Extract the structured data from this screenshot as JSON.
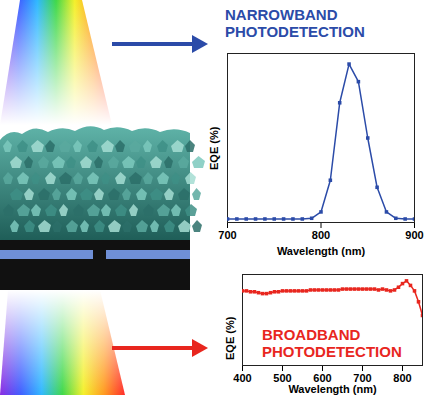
{
  "chart_data": [
    {
      "type": "line",
      "title": "NARROWBAND PHOTODETECTION",
      "x_label": "Wavelength (nm)",
      "y_label": "EQE (%)",
      "x": [
        700,
        710,
        720,
        730,
        740,
        750,
        760,
        770,
        780,
        790,
        800,
        810,
        820,
        830,
        840,
        850,
        860,
        870,
        880,
        890,
        900
      ],
      "values": [
        0.5,
        0.5,
        0.5,
        0.5,
        0.5,
        0.5,
        0.5,
        0.5,
        0.5,
        0.6,
        1.5,
        6,
        17,
        22.5,
        20,
        12,
        5,
        1.5,
        0.6,
        0.5,
        0.5
      ],
      "color": "#2b4ba8",
      "marker": "square",
      "line_style": "solid",
      "xlim": [
        700,
        900
      ],
      "xticks": [
        700,
        800,
        900
      ],
      "ylim": [
        0,
        24
      ],
      "tick_labels": "x"
    },
    {
      "type": "line",
      "title": "BROADBAND PHOTODETECTION",
      "x_label": "Wavelength (nm)",
      "y_label": "EQE (%)",
      "x": [
        400,
        410,
        420,
        430,
        440,
        450,
        460,
        470,
        480,
        490,
        500,
        510,
        520,
        530,
        540,
        550,
        560,
        570,
        580,
        590,
        600,
        610,
        620,
        630,
        640,
        650,
        660,
        670,
        680,
        690,
        700,
        710,
        720,
        730,
        740,
        750,
        760,
        770,
        780,
        790,
        800,
        810,
        820,
        830,
        840,
        850
      ],
      "values": [
        82,
        82,
        81,
        81,
        80,
        79,
        79,
        80,
        81,
        81,
        82,
        82,
        82,
        82,
        82,
        82,
        82,
        83,
        83,
        83,
        83,
        83,
        83,
        83,
        83,
        84,
        84,
        84,
        84,
        84,
        84,
        84,
        84,
        84,
        83,
        84,
        83,
        82,
        83,
        86,
        90,
        93,
        88,
        82,
        70,
        55
      ],
      "color": "#e8261e",
      "marker": "square",
      "line_style": "solid",
      "xlim": [
        400,
        850
      ],
      "xticks": [
        400,
        500,
        600,
        700,
        800
      ],
      "ylim": [
        0,
        100
      ],
      "tick_labels": "x"
    }
  ]
}
